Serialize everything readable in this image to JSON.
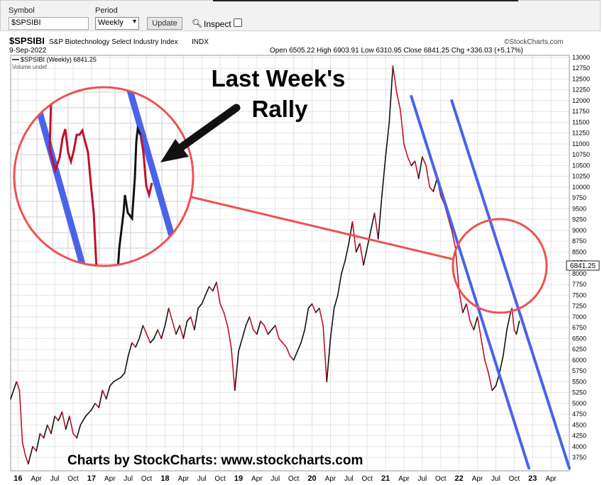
{
  "toolbar": {
    "symbol_label": "Symbol",
    "symbol_value": "$SPSIBI",
    "period_label": "Period",
    "period_value": "Weekly",
    "update_label": "Update",
    "inspect_label": "Inspect"
  },
  "header": {
    "symbol": "$SPSIBI",
    "name": "S&P Biotechnology Select Industry Index",
    "exchange": "INDX",
    "brand": "©StockCharts.com",
    "date": "9-Sep-2022",
    "ohlc": "Open 6505.22  High 6903.91  Low 6310.95  Close 6841.25  Chg +336.03 (+5.17%)",
    "legend_series": "$SPSIBI (Weekly) 6841.25",
    "legend_volume": "Volume undef",
    "last_price": "6841.25"
  },
  "annotations": {
    "callout_line1": "Last Week's",
    "callout_line2": "Rally",
    "footer": "Charts by StockCharts:  www.stockcharts.com"
  },
  "colors": {
    "up": "#111111",
    "down": "#c0102a",
    "channel": "#4a63ea",
    "circle": "#f05050"
  },
  "chart_data": {
    "type": "line",
    "title": "S&P Biotechnology Select Industry Index",
    "ylim": [
      3500,
      13000
    ],
    "y_ticks": [
      "13000",
      "12750",
      "12500",
      "12250",
      "12000",
      "11750",
      "11500",
      "11250",
      "11000",
      "10750",
      "10500",
      "10250",
      "10000",
      "9750",
      "9500",
      "9250",
      "9000",
      "8750",
      "8500",
      "8250",
      "8000",
      "7750",
      "7500",
      "7250",
      "7000",
      "6750",
      "6500",
      "6250",
      "6000",
      "5750",
      "5500",
      "5250",
      "5000",
      "4750",
      "4500",
      "4250",
      "4000",
      "3750"
    ],
    "x_ticks": [
      "16",
      "Apr",
      "Jul",
      "Oct",
      "17",
      "Apr",
      "Jul",
      "Oct",
      "18",
      "Apr",
      "Jul",
      "Oct",
      "19",
      "Apr",
      "Jul",
      "Oct",
      "20",
      "Apr",
      "Jul",
      "Oct",
      "21",
      "Apr",
      "Jul",
      "Oct",
      "22",
      "Apr",
      "Jul",
      "Oct",
      "23",
      "Apr"
    ],
    "x_start": 2015.9,
    "x_end": 2023.5,
    "series": [
      {
        "values": [
          [
            2015.9,
            5100
          ],
          [
            2015.98,
            5500
          ],
          [
            2016.02,
            5300
          ],
          [
            2016.06,
            4100
          ],
          [
            2016.1,
            3800
          ],
          [
            2016.14,
            3600
          ],
          [
            2016.2,
            4000
          ],
          [
            2016.25,
            3900
          ],
          [
            2016.3,
            4300
          ],
          [
            2016.35,
            4200
          ],
          [
            2016.4,
            4500
          ],
          [
            2016.45,
            4300
          ],
          [
            2016.5,
            4700
          ],
          [
            2016.55,
            4600
          ],
          [
            2016.6,
            4800
          ],
          [
            2016.65,
            4400
          ],
          [
            2016.7,
            4700
          ],
          [
            2016.75,
            4300
          ],
          [
            2016.8,
            4200
          ],
          [
            2016.85,
            4500
          ],
          [
            2016.92,
            4700
          ],
          [
            2017.0,
            4850
          ],
          [
            2017.05,
            5000
          ],
          [
            2017.1,
            4900
          ],
          [
            2017.15,
            5300
          ],
          [
            2017.2,
            5100
          ],
          [
            2017.25,
            5400
          ],
          [
            2017.3,
            5500
          ],
          [
            2017.4,
            5600
          ],
          [
            2017.45,
            5700
          ],
          [
            2017.5,
            6100
          ],
          [
            2017.55,
            6400
          ],
          [
            2017.6,
            6300
          ],
          [
            2017.65,
            6500
          ],
          [
            2017.7,
            6800
          ],
          [
            2017.75,
            6600
          ],
          [
            2017.8,
            6400
          ],
          [
            2017.85,
            6500
          ],
          [
            2017.9,
            6700
          ],
          [
            2017.95,
            6500
          ],
          [
            2018.0,
            6800
          ],
          [
            2018.05,
            7200
          ],
          [
            2018.1,
            6900
          ],
          [
            2018.15,
            6600
          ],
          [
            2018.2,
            6800
          ],
          [
            2018.25,
            6500
          ],
          [
            2018.3,
            6900
          ],
          [
            2018.35,
            7000
          ],
          [
            2018.4,
            6700
          ],
          [
            2018.45,
            7200
          ],
          [
            2018.5,
            7300
          ],
          [
            2018.55,
            7500
          ],
          [
            2018.6,
            7700
          ],
          [
            2018.65,
            7600
          ],
          [
            2018.7,
            7800
          ],
          [
            2018.75,
            7300
          ],
          [
            2018.8,
            7100
          ],
          [
            2018.85,
            6800
          ],
          [
            2018.9,
            6300
          ],
          [
            2018.95,
            5300
          ],
          [
            2019.0,
            6200
          ],
          [
            2019.05,
            6500
          ],
          [
            2019.1,
            6800
          ],
          [
            2019.15,
            7000
          ],
          [
            2019.2,
            6700
          ],
          [
            2019.25,
            6600
          ],
          [
            2019.3,
            6900
          ],
          [
            2019.35,
            6800
          ],
          [
            2019.4,
            6600
          ],
          [
            2019.45,
            6700
          ],
          [
            2019.5,
            6800
          ],
          [
            2019.55,
            6500
          ],
          [
            2019.6,
            6400
          ],
          [
            2019.65,
            6300
          ],
          [
            2019.7,
            6100
          ],
          [
            2019.75,
            6000
          ],
          [
            2019.8,
            6200
          ],
          [
            2019.85,
            6400
          ],
          [
            2019.9,
            6700
          ],
          [
            2019.95,
            7200
          ],
          [
            2020.0,
            7300
          ],
          [
            2020.05,
            7100
          ],
          [
            2020.1,
            7200
          ],
          [
            2020.15,
            6800
          ],
          [
            2020.2,
            5500
          ],
          [
            2020.25,
            6500
          ],
          [
            2020.3,
            7200
          ],
          [
            2020.35,
            7500
          ],
          [
            2020.4,
            8000
          ],
          [
            2020.45,
            8300
          ],
          [
            2020.5,
            8700
          ],
          [
            2020.55,
            9200
          ],
          [
            2020.6,
            8500
          ],
          [
            2020.65,
            8700
          ],
          [
            2020.7,
            8200
          ],
          [
            2020.75,
            8600
          ],
          [
            2020.8,
            9000
          ],
          [
            2020.85,
            9400
          ],
          [
            2020.9,
            8800
          ],
          [
            2020.95,
            9800
          ],
          [
            2021.0,
            10700
          ],
          [
            2021.05,
            11500
          ],
          [
            2021.1,
            12800
          ],
          [
            2021.15,
            12200
          ],
          [
            2021.2,
            11800
          ],
          [
            2021.25,
            11000
          ],
          [
            2021.3,
            10700
          ],
          [
            2021.35,
            10500
          ],
          [
            2021.4,
            10600
          ],
          [
            2021.45,
            10200
          ],
          [
            2021.5,
            10700
          ],
          [
            2021.55,
            10500
          ],
          [
            2021.6,
            10000
          ],
          [
            2021.65,
            9900
          ],
          [
            2021.7,
            10200
          ],
          [
            2021.75,
            9800
          ],
          [
            2021.8,
            9600
          ],
          [
            2021.85,
            9300
          ],
          [
            2021.9,
            9000
          ],
          [
            2021.95,
            8600
          ],
          [
            2022.0,
            7600
          ],
          [
            2022.05,
            7100
          ],
          [
            2022.1,
            7300
          ],
          [
            2022.15,
            6900
          ],
          [
            2022.2,
            6700
          ],
          [
            2022.25,
            7000
          ],
          [
            2022.3,
            6500
          ],
          [
            2022.35,
            6000
          ],
          [
            2022.4,
            5700
          ],
          [
            2022.45,
            5300
          ],
          [
            2022.5,
            5400
          ],
          [
            2022.55,
            5700
          ],
          [
            2022.6,
            6100
          ],
          [
            2022.65,
            6700
          ],
          [
            2022.7,
            7100
          ],
          [
            2022.72,
            7200
          ],
          [
            2022.75,
            6700
          ],
          [
            2022.78,
            6600
          ],
          [
            2022.82,
            6900
          ]
        ]
      }
    ],
    "channels": [
      [
        [
          2021.35,
          12100
        ],
        [
          2022.95,
          3500
        ]
      ],
      [
        [
          2021.9,
          12000
        ],
        [
          2023.5,
          3500
        ]
      ]
    ]
  }
}
